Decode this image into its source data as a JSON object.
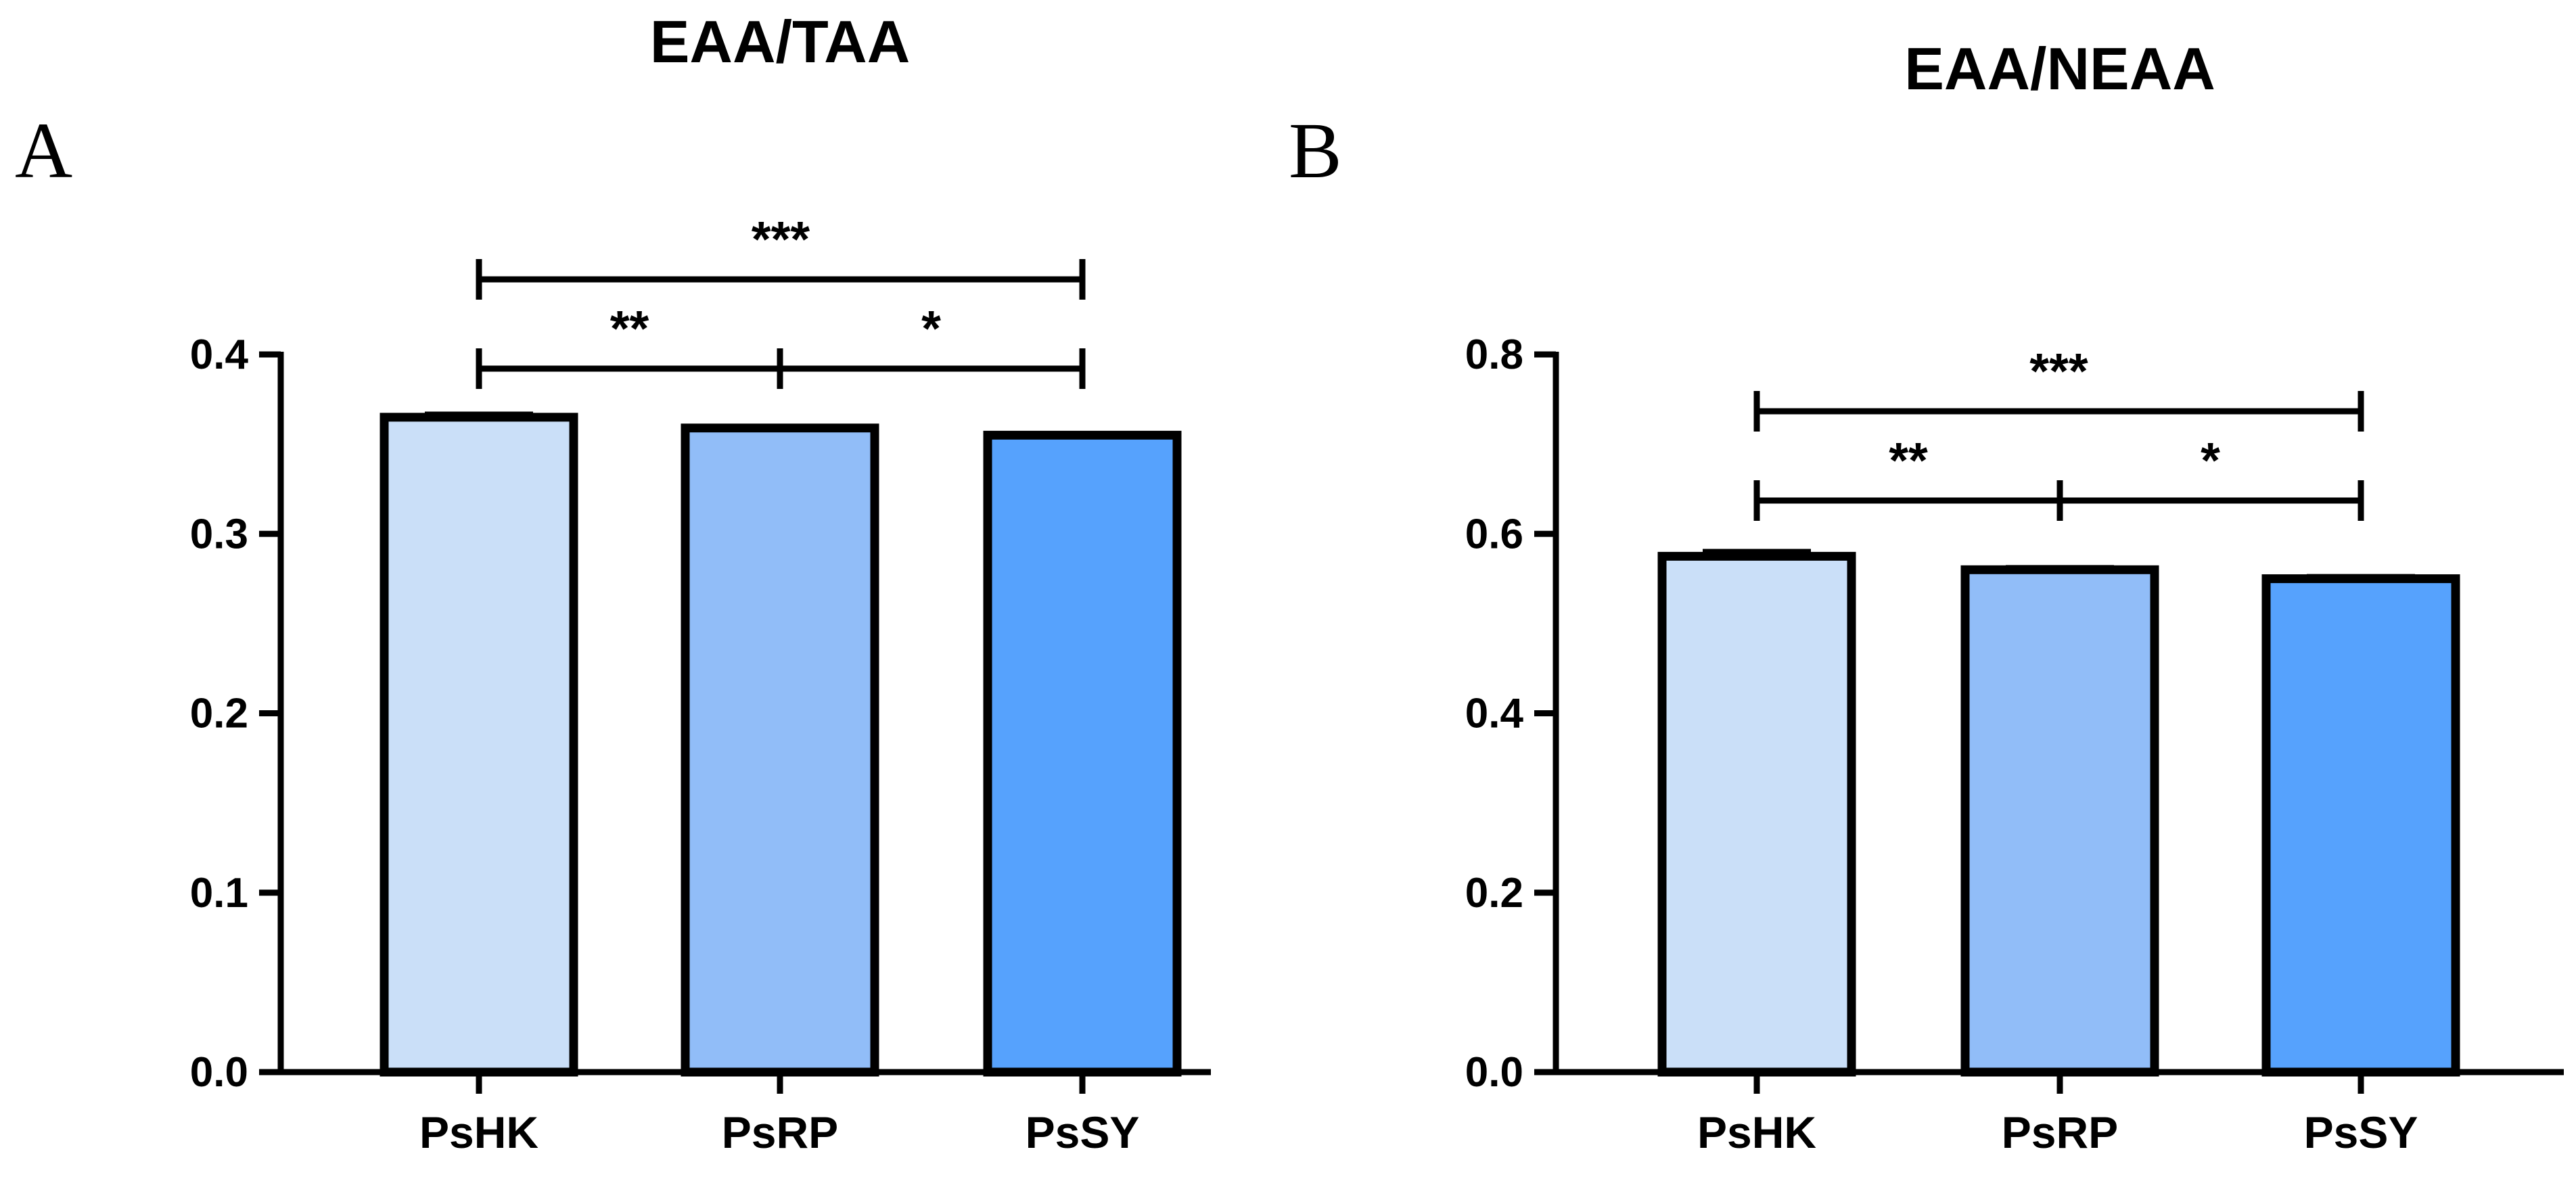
{
  "chart_data": [
    {
      "type": "bar",
      "panel": "A",
      "title": "EAA/TAA",
      "xlabel": "",
      "ylabel": "",
      "categories": [
        "PsHK",
        "PsRP",
        "PsSY"
      ],
      "values": [
        0.365,
        0.359,
        0.355
      ],
      "errors": [
        0.002,
        0.001,
        0.001
      ],
      "colors": [
        "#cadff8",
        "#91bdf8",
        "#56a2fd"
      ],
      "ylim": [
        0,
        0.4
      ],
      "yticks": [
        0.0,
        0.1,
        0.2,
        0.3,
        0.4
      ],
      "ytick_labels": [
        "0.0",
        "0.1",
        "0.2",
        "0.3",
        "0.4"
      ],
      "significance": [
        {
          "from": 0,
          "to": 2,
          "label": "***",
          "level": 2
        },
        {
          "from": 0,
          "to": 1,
          "label": "**",
          "level": 1
        },
        {
          "from": 1,
          "to": 2,
          "label": "*",
          "level": 1
        }
      ]
    },
    {
      "type": "bar",
      "panel": "B",
      "title": "EAA/NEAA",
      "xlabel": "",
      "ylabel": "",
      "categories": [
        "PsHK",
        "PsRP",
        "PsSY"
      ],
      "values": [
        0.575,
        0.56,
        0.55
      ],
      "errors": [
        0.006,
        0.003,
        0.003
      ],
      "colors": [
        "#cadff8",
        "#91bdf8",
        "#56a2fd"
      ],
      "ylim": [
        0,
        0.8
      ],
      "yticks": [
        0.0,
        0.2,
        0.4,
        0.6,
        0.8
      ],
      "ytick_labels": [
        "0.0",
        "0.2",
        "0.4",
        "0.6",
        "0.8"
      ],
      "significance": [
        {
          "from": 0,
          "to": 2,
          "label": "***",
          "level": 2
        },
        {
          "from": 0,
          "to": 1,
          "label": "**",
          "level": 1
        },
        {
          "from": 1,
          "to": 2,
          "label": "*",
          "level": 1
        }
      ]
    }
  ]
}
